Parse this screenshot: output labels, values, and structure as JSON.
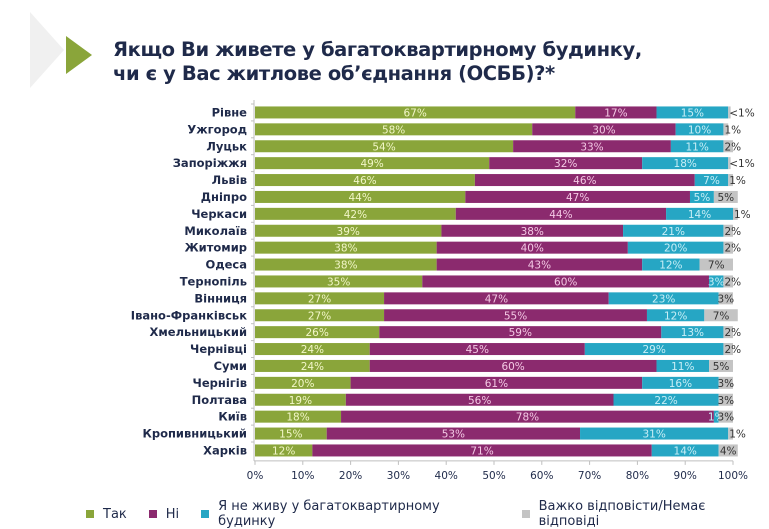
{
  "header": {
    "title": "Якщо Ви живете у багатоквартирному будинку, чи є у Вас житлове об’єднання (ОСББ)?*"
  },
  "chart_data": {
    "type": "bar",
    "orientation": "horizontal",
    "stacked": true,
    "title": "Якщо Ви живете у багатоквартирному будинку, чи є у Вас житлове об’єднання (ОСББ)?*",
    "xlabel": "",
    "ylabel": "",
    "xlim": [
      0,
      100
    ],
    "x_ticks": [
      "0%",
      "10%",
      "20%",
      "30%",
      "40%",
      "50%",
      "60%",
      "70%",
      "80%",
      "90%",
      "100%"
    ],
    "legend_position": "bottom",
    "grid": false,
    "categories": [
      "Рівне",
      "Ужгород",
      "Луцьк",
      "Запоріжжя",
      "Львів",
      "Дніпро",
      "Черкаси",
      "Миколаїв",
      "Житомир",
      "Одеса",
      "Тернопіль",
      "Вінниця",
      "Івано-Франківськ",
      "Хмельницький",
      "Чернівці",
      "Суми",
      "Чернігів",
      "Полтава",
      "Київ",
      "Кропивницький",
      "Харків"
    ],
    "series": [
      {
        "name": "Так",
        "color": "#8aa53a",
        "values": [
          67,
          58,
          54,
          49,
          46,
          44,
          42,
          39,
          38,
          38,
          35,
          27,
          27,
          26,
          24,
          24,
          20,
          19,
          18,
          15,
          12
        ],
        "labels": [
          "67%",
          "58%",
          "54%",
          "49%",
          "46%",
          "44%",
          "42%",
          "39%",
          "38%",
          "38%",
          "35%",
          "27%",
          "27%",
          "26%",
          "24%",
          "24%",
          "20%",
          "19%",
          "18%",
          "15%",
          "12%"
        ]
      },
      {
        "name": "Ні",
        "color": "#8b2a6e",
        "values": [
          17,
          30,
          33,
          32,
          46,
          47,
          44,
          38,
          40,
          43,
          60,
          47,
          55,
          59,
          45,
          60,
          61,
          56,
          78,
          53,
          71
        ],
        "labels": [
          "17%",
          "30%",
          "33%",
          "32%",
          "46%",
          "47%",
          "44%",
          "38%",
          "40%",
          "43%",
          "60%",
          "47%",
          "55%",
          "59%",
          "45%",
          "60%",
          "61%",
          "56%",
          "78%",
          "53%",
          "71%"
        ]
      },
      {
        "name": "Я не живу у багатоквартирному будинку",
        "color": "#26a6c4",
        "values": [
          15,
          10,
          11,
          18,
          7,
          5,
          14,
          21,
          20,
          12,
          3,
          23,
          12,
          13,
          29,
          11,
          16,
          22,
          1,
          31,
          14
        ],
        "labels": [
          "15%",
          "10%",
          "11%",
          "18%",
          "7%",
          "5%",
          "14%",
          "21%",
          "20%",
          "12%",
          "3%",
          "23%",
          "12%",
          "13%",
          "29%",
          "11%",
          "16%",
          "22%",
          "1%",
          "31%",
          "14%"
        ]
      },
      {
        "name": "Важко відповісти/Немає відповіді",
        "color": "#c4c4c4",
        "values": [
          0.5,
          1,
          2,
          0.5,
          1,
          5,
          1,
          2,
          2,
          7,
          2,
          3,
          7,
          2,
          2,
          5,
          3,
          3,
          3,
          1,
          4
        ],
        "labels": [
          "<1%",
          "1%",
          "2%",
          "<1%",
          "1%",
          "5%",
          "1%",
          "2%",
          "2%",
          "7%",
          "2%",
          "3%",
          "7%",
          "2%",
          "2%",
          "5%",
          "3%",
          "3%",
          "3%",
          "1%",
          "4%"
        ]
      }
    ]
  },
  "legend": [
    {
      "label": "Так",
      "color": "#8aa53a"
    },
    {
      "label": "Ні",
      "color": "#8b2a6e"
    },
    {
      "label": "Я не живу у багатоквартирному будинку",
      "color": "#26a6c4"
    },
    {
      "label": "Важко відповісти/Немає відповіді",
      "color": "#c4c4c4"
    }
  ]
}
